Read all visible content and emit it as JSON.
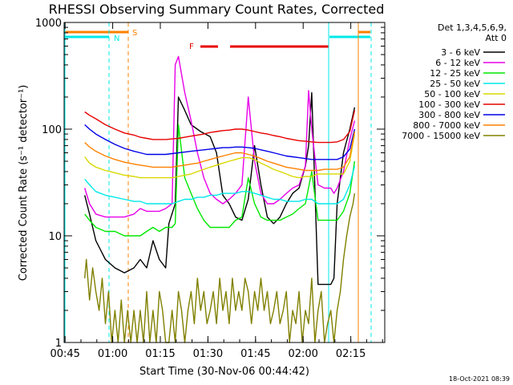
{
  "chart_data": {
    "type": "line",
    "title": "RHESSI Observing Summary Count Rates, Corrected",
    "xlabel": "Start Time (30-Nov-06 00:44:42)",
    "ylabel": "Corrected Count Rate (s⁻¹ detector⁻¹)",
    "y_scale": "log",
    "ylim": [
      1,
      1000
    ],
    "xlim_minutes": [
      0,
      101
    ],
    "x_ticks": [
      {
        "label": "00:45",
        "minutes": 0.3
      },
      {
        "label": "01:00",
        "minutes": 15.3
      },
      {
        "label": "01:15",
        "minutes": 30.3
      },
      {
        "label": "01:30",
        "minutes": 45.3
      },
      {
        "label": "01:45",
        "minutes": 60.3
      },
      {
        "label": "02:00",
        "minutes": 75.3
      },
      {
        "label": "02:15",
        "minutes": 90.3
      }
    ],
    "y_ticks": [
      {
        "label": "1",
        "value": 1
      },
      {
        "label": "10",
        "value": 10
      },
      {
        "label": "100",
        "value": 100
      },
      {
        "label": "1000",
        "value": 1000
      }
    ],
    "legend": {
      "position": "right",
      "header": [
        "Det 1,3,4,5,6,9,",
        "Att 0"
      ],
      "entries": [
        {
          "label": "3 - 6 keV",
          "color": "#000000"
        },
        {
          "label": "6 - 12 keV",
          "color": "#e800e8"
        },
        {
          "label": "12 - 25 keV",
          "color": "#00e800"
        },
        {
          "label": "25 - 50 keV",
          "color": "#00e8e8"
        },
        {
          "label": "50 - 100 keV",
          "color": "#d8d800"
        },
        {
          "label": "100 - 300 keV",
          "color": "#e80000"
        },
        {
          "label": "300 - 800 keV",
          "color": "#0000e8"
        },
        {
          "label": "800 - 7000 keV",
          "color": "#ff8000"
        },
        {
          "label": "7000 - 15000 keV",
          "color": "#808000"
        }
      ]
    },
    "series": [
      {
        "name": "3 - 6 keV",
        "color": "#000000",
        "x": [
          6.5,
          8,
          10,
          13,
          16,
          19,
          22,
          24,
          26,
          28,
          30,
          32,
          33,
          35,
          36,
          38,
          40,
          43,
          46,
          48,
          50,
          52,
          54,
          56,
          58,
          60,
          62,
          64,
          66,
          68,
          70,
          72,
          74,
          76,
          77,
          78,
          80,
          82,
          84,
          85,
          86,
          88,
          90,
          91.5
        ],
        "y": [
          24,
          16,
          9,
          6,
          5,
          4.5,
          5,
          6,
          5,
          9,
          6,
          5,
          13,
          20,
          200,
          150,
          110,
          95,
          85,
          60,
          24,
          20,
          15,
          14,
          22,
          70,
          30,
          15,
          13,
          15,
          20,
          25,
          28,
          45,
          70,
          220,
          3.5,
          3.5,
          3.5,
          4,
          20,
          60,
          100,
          160
        ]
      },
      {
        "name": "6 - 12 keV",
        "color": "#e800e8",
        "x": [
          6.5,
          8,
          10,
          13,
          16,
          19,
          22,
          24,
          26,
          28,
          30,
          32,
          33,
          34,
          35,
          36,
          38,
          40,
          42,
          44,
          46,
          48,
          50,
          52,
          54,
          56,
          58,
          60,
          62,
          64,
          66,
          68,
          70,
          72,
          74,
          76,
          77,
          78,
          80,
          82,
          84,
          85,
          86,
          88,
          90,
          91.5
        ],
        "y": [
          28,
          20,
          16,
          15,
          15,
          15,
          16,
          18,
          17,
          17,
          17,
          18,
          19,
          20,
          400,
          480,
          220,
          120,
          60,
          35,
          25,
          22,
          20,
          22,
          25,
          30,
          200,
          50,
          25,
          20,
          20,
          22,
          25,
          28,
          30,
          45,
          230,
          100,
          30,
          28,
          28,
          25,
          28,
          40,
          80,
          120
        ]
      },
      {
        "name": "12 - 25 keV",
        "color": "#00e800",
        "x": [
          6.5,
          8,
          10,
          13,
          16,
          19,
          22,
          24,
          26,
          28,
          30,
          32,
          34,
          35,
          36,
          38,
          40,
          42,
          44,
          46,
          48,
          50,
          52,
          54,
          56,
          58,
          60,
          62,
          64,
          66,
          68,
          70,
          72,
          74,
          76,
          78,
          80,
          82,
          84,
          86,
          88,
          90,
          91.5
        ],
        "y": [
          16,
          14,
          12,
          11,
          11,
          10,
          10,
          10,
          11,
          12,
          11,
          12,
          12,
          13,
          110,
          35,
          25,
          18,
          14,
          12,
          12,
          12,
          12,
          14,
          15,
          35,
          20,
          15,
          14,
          14,
          14,
          15,
          16,
          18,
          20,
          40,
          14,
          14,
          14,
          14,
          17,
          25,
          50
        ]
      },
      {
        "name": "25 - 50 keV",
        "color": "#00e8e8",
        "x": [
          6.5,
          8,
          10,
          13,
          16,
          19,
          22,
          24,
          26,
          28,
          30,
          32,
          34,
          36,
          38,
          40,
          42,
          44,
          46,
          48,
          50,
          52,
          54,
          56,
          58,
          60,
          62,
          64,
          66,
          68,
          70,
          72,
          74,
          76,
          78,
          80,
          82,
          84,
          86,
          88,
          90,
          91.5
        ],
        "y": [
          34,
          30,
          26,
          24,
          23,
          22,
          21,
          21,
          20,
          20,
          20,
          20,
          20,
          21,
          22,
          22,
          23,
          23,
          24,
          24,
          25,
          25,
          25,
          26,
          26,
          25,
          24,
          23,
          22,
          22,
          21,
          21,
          21,
          22,
          22,
          20,
          20,
          20,
          20,
          22,
          30,
          45
        ]
      },
      {
        "name": "50 - 100 keV",
        "color": "#d8d800",
        "x": [
          6.5,
          8,
          10,
          13,
          16,
          19,
          22,
          24,
          26,
          28,
          30,
          32,
          34,
          36,
          38,
          40,
          42,
          44,
          46,
          48,
          50,
          52,
          54,
          56,
          58,
          60,
          62,
          64,
          66,
          68,
          70,
          72,
          74,
          76,
          78,
          80,
          82,
          84,
          86,
          88,
          90,
          91.5
        ],
        "y": [
          55,
          48,
          44,
          41,
          39,
          37,
          36,
          35,
          35,
          35,
          35,
          35,
          35,
          36,
          37,
          38,
          40,
          42,
          44,
          46,
          48,
          50,
          52,
          54,
          54,
          52,
          48,
          45,
          42,
          40,
          38,
          36,
          35,
          36,
          36,
          38,
          38,
          38,
          38,
          38,
          50,
          90
        ]
      },
      {
        "name": "100 - 300 keV",
        "color": "#e80000",
        "x": [
          6.5,
          8,
          10,
          13,
          16,
          19,
          22,
          24,
          26,
          28,
          30,
          32,
          34,
          36,
          38,
          40,
          42,
          44,
          46,
          48,
          50,
          52,
          54,
          56,
          58,
          60,
          62,
          64,
          66,
          68,
          70,
          72,
          74,
          76,
          78,
          80,
          82,
          84,
          86,
          88,
          90,
          91.5
        ],
        "y": [
          145,
          135,
          125,
          110,
          100,
          92,
          88,
          84,
          82,
          80,
          80,
          80,
          81,
          82,
          84,
          86,
          88,
          90,
          93,
          95,
          97,
          98,
          100,
          100,
          98,
          95,
          92,
          90,
          87,
          85,
          82,
          80,
          78,
          77,
          76,
          75,
          75,
          75,
          76,
          80,
          95,
          150
        ]
      },
      {
        "name": "300 - 800 keV",
        "color": "#0000e8",
        "x": [
          6.5,
          8,
          10,
          13,
          16,
          19,
          22,
          24,
          26,
          28,
          30,
          32,
          34,
          36,
          38,
          40,
          42,
          44,
          46,
          48,
          50,
          52,
          54,
          56,
          58,
          60,
          62,
          64,
          66,
          68,
          70,
          72,
          74,
          76,
          78,
          80,
          82,
          84,
          86,
          88,
          90,
          91.5
        ],
        "y": [
          110,
          100,
          90,
          80,
          72,
          66,
          62,
          60,
          58,
          58,
          58,
          58,
          59,
          60,
          61,
          62,
          63,
          64,
          65,
          66,
          67,
          67,
          68,
          68,
          67,
          66,
          64,
          62,
          60,
          58,
          56,
          55,
          54,
          53,
          52,
          52,
          52,
          52,
          52,
          55,
          65,
          100
        ]
      },
      {
        "name": "800 - 7000 keV",
        "color": "#ff8000",
        "x": [
          6.5,
          8,
          10,
          13,
          16,
          19,
          22,
          24,
          26,
          28,
          30,
          32,
          34,
          36,
          38,
          40,
          42,
          44,
          46,
          48,
          50,
          52,
          54,
          56,
          58,
          60,
          62,
          64,
          66,
          68,
          70,
          72,
          74,
          76,
          78,
          80,
          82,
          84,
          86,
          88,
          90,
          91.5
        ],
        "y": [
          75,
          68,
          62,
          56,
          52,
          49,
          47,
          46,
          45,
          44,
          44,
          44,
          44,
          45,
          46,
          47,
          48,
          50,
          52,
          54,
          56,
          58,
          60,
          60,
          58,
          56,
          53,
          50,
          48,
          46,
          44,
          43,
          42,
          41,
          41,
          41,
          42,
          42,
          42,
          44,
          55,
          95
        ]
      },
      {
        "name": "7000 - 15000 keV",
        "color": "#808000",
        "x": [
          6.5,
          7,
          8,
          9,
          10,
          11,
          12,
          13,
          14,
          15,
          16,
          17,
          18,
          19,
          20,
          21,
          22,
          23,
          24,
          25,
          26,
          27,
          28,
          29,
          30,
          31,
          32,
          33,
          34,
          35,
          36,
          37,
          38,
          39,
          40,
          41,
          42,
          43,
          44,
          45,
          46,
          47,
          48,
          49,
          50,
          51,
          52,
          53,
          54,
          55,
          56,
          57,
          58,
          59,
          60,
          61,
          62,
          63,
          64,
          65,
          66,
          67,
          68,
          69,
          70,
          71,
          72,
          73,
          74,
          75,
          76,
          77,
          78,
          79,
          80,
          81,
          82,
          83,
          84,
          85,
          86,
          87,
          88,
          89,
          90,
          91,
          91.5
        ],
        "y": [
          4,
          6,
          2.5,
          5,
          3,
          2,
          4,
          1.5,
          3,
          1,
          2,
          1,
          2.5,
          1,
          2,
          1,
          2,
          1,
          2,
          1,
          3,
          1,
          2,
          1,
          3,
          2,
          1,
          1,
          2,
          1,
          3,
          2,
          1,
          2,
          3,
          1.5,
          4,
          2,
          3,
          1.5,
          2,
          3,
          1.5,
          4,
          2,
          3,
          1.5,
          4,
          2,
          3,
          2,
          4,
          3,
          1.5,
          3,
          2,
          4,
          2,
          3,
          1.5,
          2,
          3,
          1.5,
          2,
          3,
          1,
          2,
          1.5,
          3,
          1,
          2,
          1.5,
          4,
          1,
          2,
          3,
          1,
          1.5,
          2,
          1,
          2,
          3,
          6,
          10,
          15,
          20,
          25
        ]
      }
    ],
    "annotations": [
      {
        "text": "S",
        "color": "#ff8000"
      },
      {
        "text": "N",
        "color": "#00e8e8"
      },
      {
        "text": "F",
        "color": "#e80000"
      }
    ],
    "timestamp": "18-Oct-2021 08:39"
  }
}
